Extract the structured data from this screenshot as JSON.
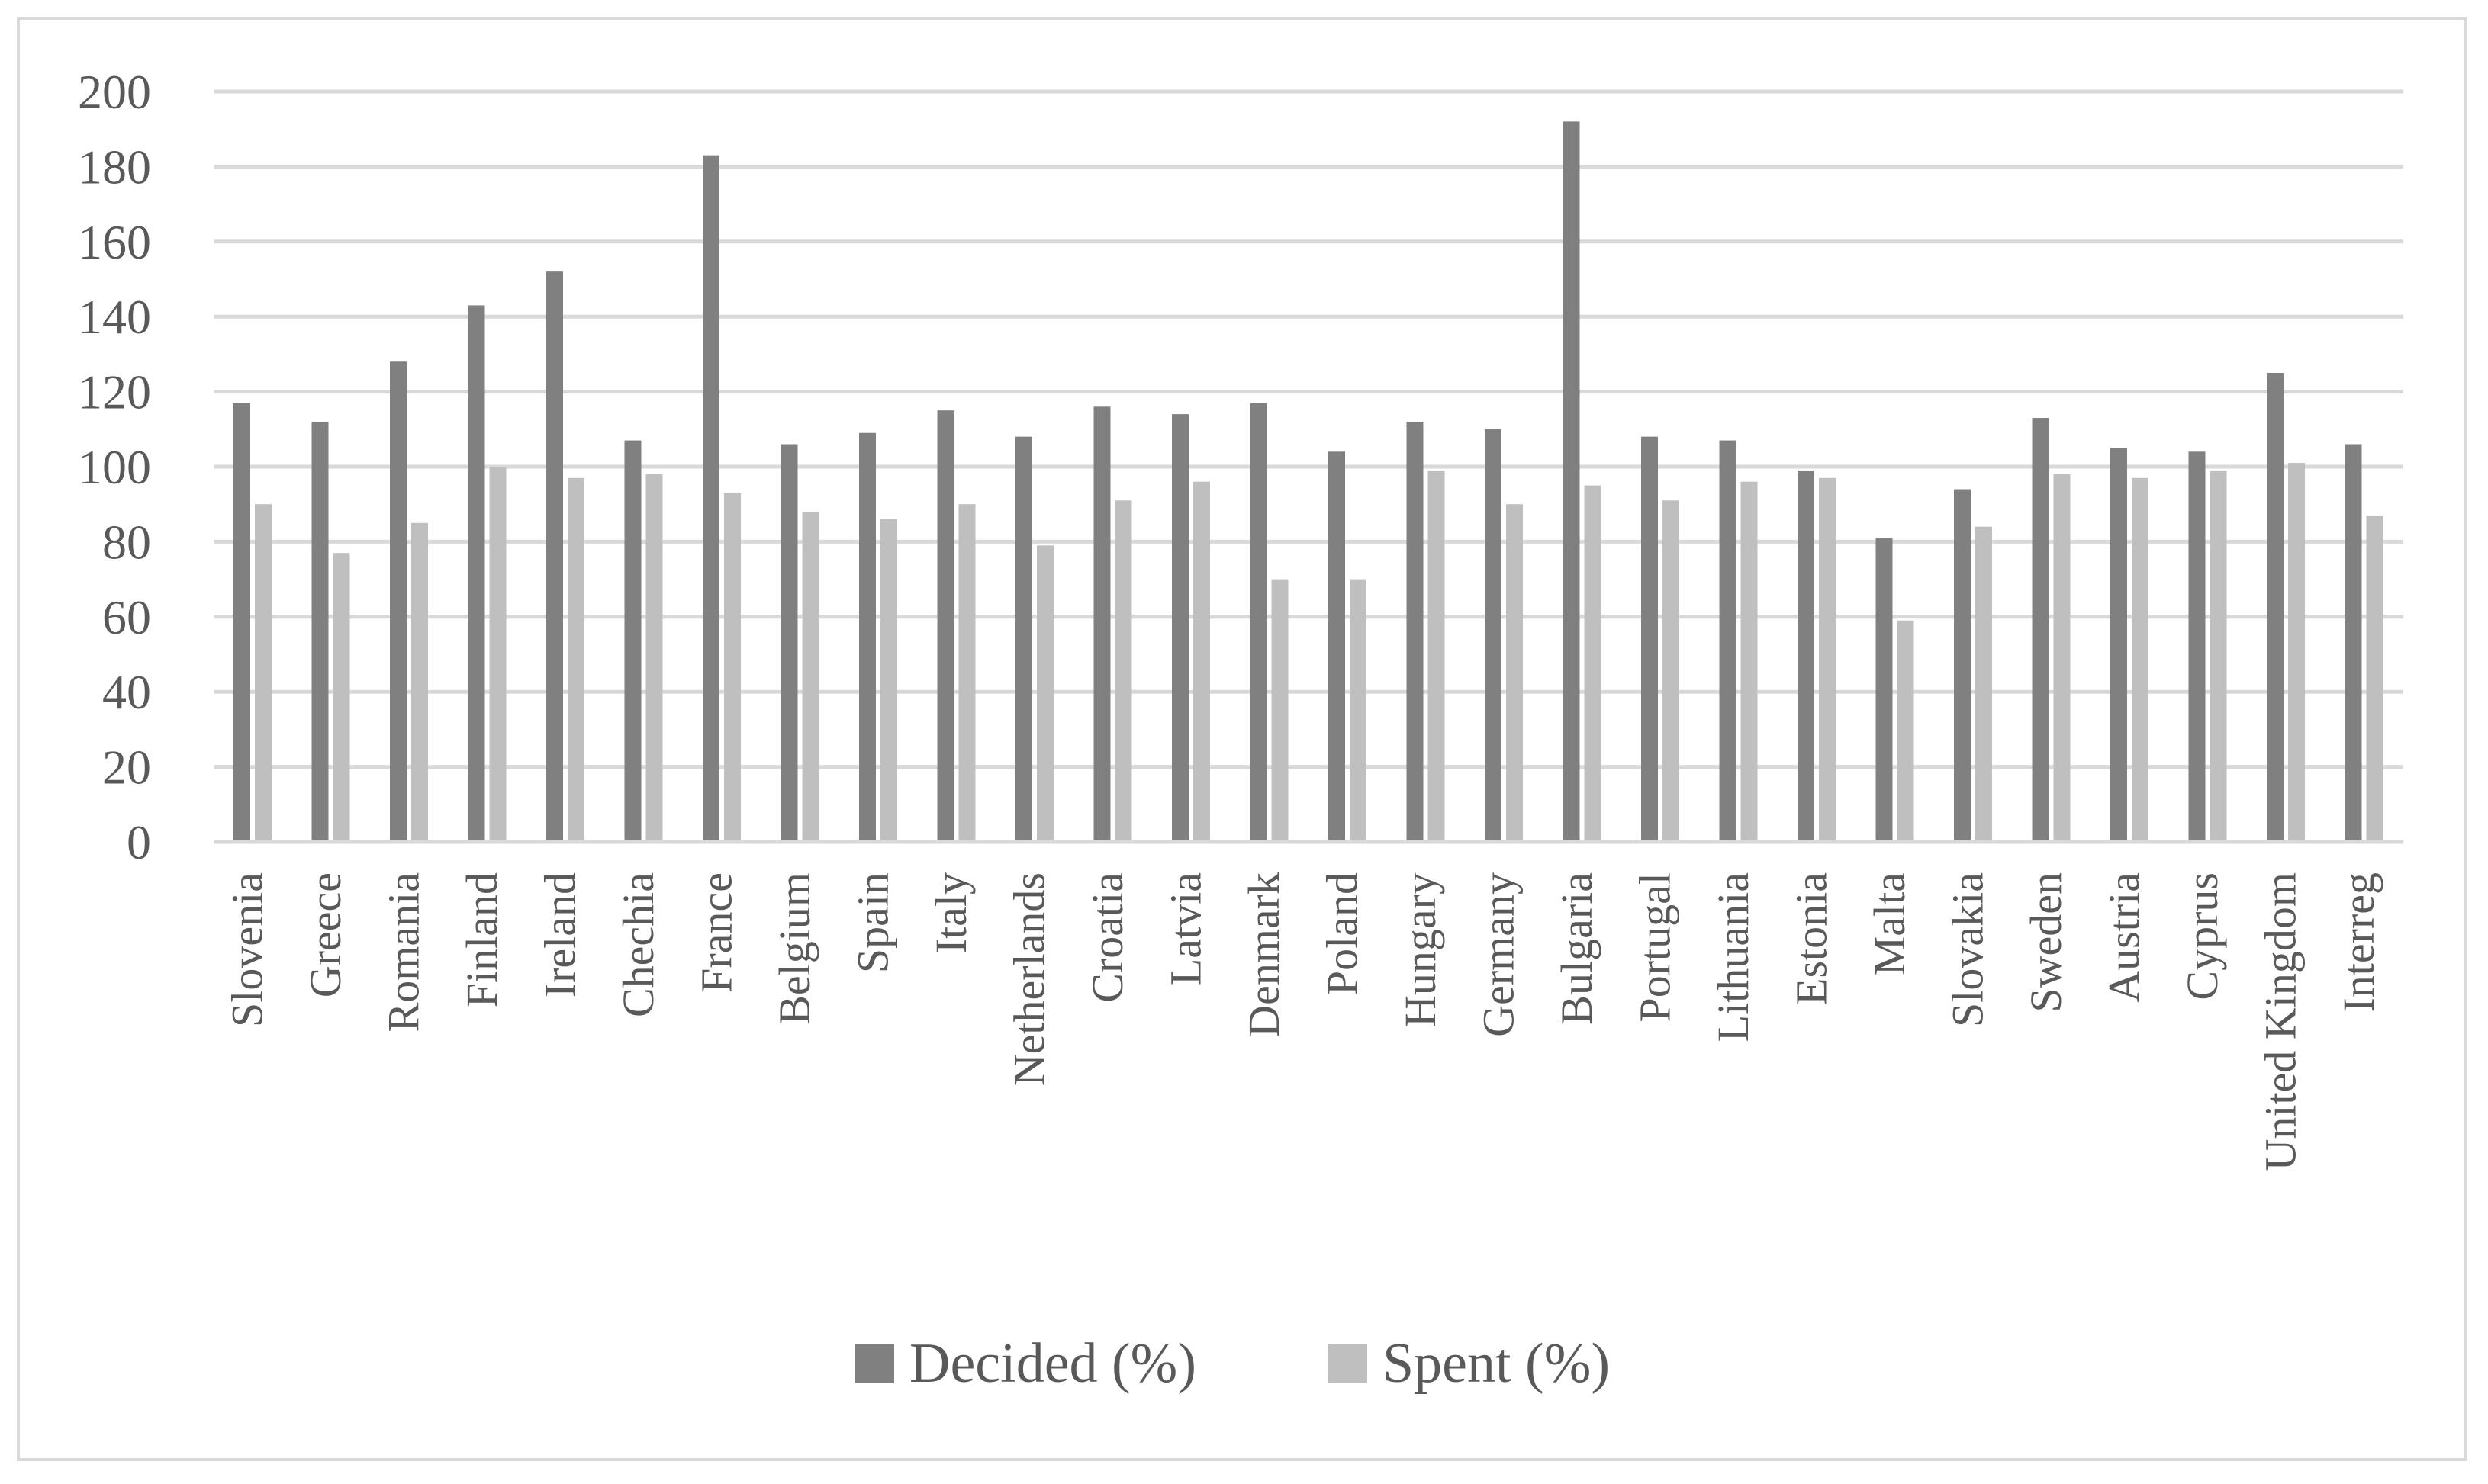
{
  "chart_data": {
    "type": "bar",
    "categories": [
      "Slovenia",
      "Greece",
      "Romania",
      "Finland",
      "Ireland",
      "Chechia",
      "France",
      "Belgium",
      "Spain",
      "Italy",
      "Netherlands",
      "Croatia",
      "Latvia",
      "Denmark",
      "Poland",
      "Hungary",
      "Germany",
      "Bulgaria",
      "Portugal",
      "Lithuania",
      "Estonia",
      "Malta",
      "Slovakia",
      "Sweden",
      "Austria",
      "Cyprus",
      "United Kingdom",
      "Interreg"
    ],
    "series": [
      {
        "name": "Decided (%)",
        "color": "#808080",
        "values": [
          117,
          112,
          128,
          143,
          152,
          107,
          183,
          106,
          109,
          115,
          108,
          116,
          114,
          117,
          104,
          112,
          110,
          192,
          108,
          107,
          99,
          81,
          94,
          113,
          105,
          104,
          125,
          106
        ]
      },
      {
        "name": "Spent (%)",
        "color": "#bfbfbf",
        "values": [
          90,
          77,
          85,
          100,
          97,
          98,
          93,
          88,
          86,
          90,
          79,
          91,
          96,
          70,
          70,
          99,
          90,
          95,
          91,
          96,
          97,
          59,
          84,
          98,
          97,
          99,
          101,
          87
        ]
      }
    ],
    "yticks": [
      "0",
      "20",
      "40",
      "60",
      "80",
      "100",
      "120",
      "140",
      "160",
      "180",
      "200"
    ],
    "ylim": [
      0,
      200
    ],
    "grid": true,
    "gridline_color": "#d9d9d9",
    "legend_position": "bottom"
  }
}
